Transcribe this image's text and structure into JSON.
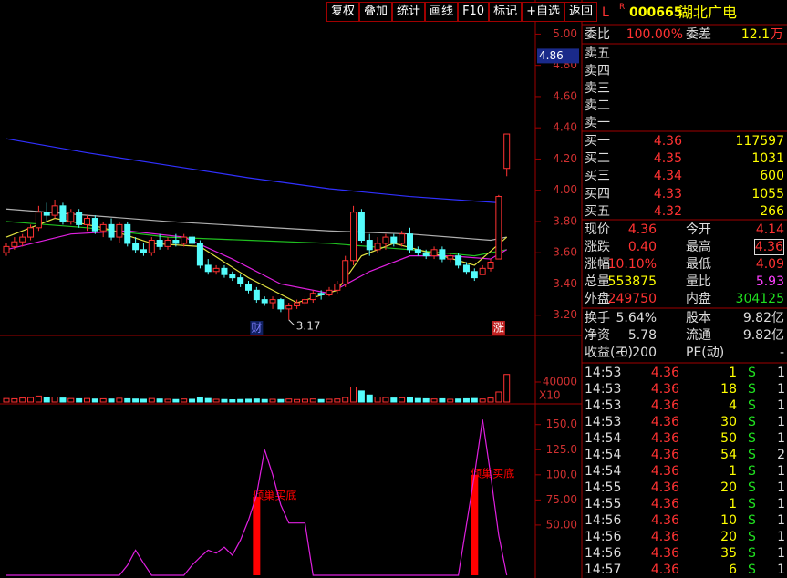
{
  "toolbar": [
    "复权",
    "叠加",
    "统计",
    "画线",
    "F10",
    "标记",
    "+自选",
    "返回"
  ],
  "quote": {
    "header": {
      "tag": "L",
      "flag": "R",
      "code": "000665",
      "name": "湖北广电"
    },
    "ratio": {
      "label": "委比",
      "value": "100.00%",
      "label2": "委差",
      "value2": "12.1",
      "unit": "万"
    },
    "asks": [
      "卖五",
      "卖四",
      "卖三",
      "卖二",
      "卖一"
    ],
    "bids": [
      {
        "label": "买一",
        "price": "4.36",
        "volume": "117597"
      },
      {
        "label": "买二",
        "price": "4.35",
        "volume": "1031"
      },
      {
        "label": "买三",
        "price": "4.34",
        "volume": "600"
      },
      {
        "label": "买四",
        "price": "4.33",
        "volume": "1055"
      },
      {
        "label": "买五",
        "price": "4.32",
        "volume": "266"
      }
    ],
    "stats": [
      [
        "现价",
        "4.36",
        "今开",
        "4.14"
      ],
      [
        "涨跌",
        "0.40",
        "最高",
        "4.36"
      ],
      [
        "涨幅",
        "10.10%",
        "最低",
        "4.09"
      ],
      [
        "总量",
        "553875",
        "量比",
        "5.93"
      ],
      [
        "外盘",
        "249750",
        "内盘",
        "304125"
      ],
      [
        "换手",
        "5.64%",
        "股本",
        "9.82亿"
      ],
      [
        "净资",
        "5.78",
        "流通",
        "9.82亿"
      ],
      [
        "收益(三)",
        "-0.200",
        "PE(动)",
        "-"
      ]
    ],
    "trades": [
      [
        "14:53",
        "4.36",
        "1",
        "S",
        "1"
      ],
      [
        "14:53",
        "4.36",
        "18",
        "S",
        "1"
      ],
      [
        "14:53",
        "4.36",
        "4",
        "S",
        "1"
      ],
      [
        "14:53",
        "4.36",
        "30",
        "S",
        "1"
      ],
      [
        "14:54",
        "4.36",
        "50",
        "S",
        "1"
      ],
      [
        "14:54",
        "4.36",
        "54",
        "S",
        "2"
      ],
      [
        "14:54",
        "4.36",
        "1",
        "S",
        "1"
      ],
      [
        "14:55",
        "4.36",
        "20",
        "S",
        "1"
      ],
      [
        "14:55",
        "4.36",
        "1",
        "S",
        "1"
      ],
      [
        "14:56",
        "4.36",
        "10",
        "S",
        "1"
      ],
      [
        "14:56",
        "4.36",
        "20",
        "S",
        "1"
      ],
      [
        "14:56",
        "4.36",
        "35",
        "S",
        "1"
      ],
      [
        "14:57",
        "4.36",
        "6",
        "S",
        "1"
      ]
    ]
  },
  "chart_data": [
    {
      "type": "candlestick",
      "up_color": "#ff3232",
      "down_color": "#54fcfc",
      "ohlc": [
        [
          3.6,
          3.66,
          3.58,
          3.64
        ],
        [
          3.64,
          3.7,
          3.62,
          3.67
        ],
        [
          3.67,
          3.72,
          3.64,
          3.7
        ],
        [
          3.7,
          3.78,
          3.68,
          3.76
        ],
        [
          3.76,
          3.9,
          3.74,
          3.86
        ],
        [
          3.86,
          3.92,
          3.8,
          3.84
        ],
        [
          3.84,
          3.94,
          3.82,
          3.9
        ],
        [
          3.9,
          3.92,
          3.78,
          3.8
        ],
        [
          3.8,
          3.88,
          3.78,
          3.86
        ],
        [
          3.86,
          3.88,
          3.76,
          3.78
        ],
        [
          3.78,
          3.84,
          3.74,
          3.82
        ],
        [
          3.82,
          3.84,
          3.72,
          3.74
        ],
        [
          3.74,
          3.8,
          3.7,
          3.78
        ],
        [
          3.78,
          3.82,
          3.68,
          3.7
        ],
        [
          3.7,
          3.8,
          3.66,
          3.78
        ],
        [
          3.78,
          3.8,
          3.64,
          3.66
        ],
        [
          3.66,
          3.7,
          3.6,
          3.62
        ],
        [
          3.62,
          3.66,
          3.58,
          3.6
        ],
        [
          3.6,
          3.7,
          3.58,
          3.68
        ],
        [
          3.68,
          3.72,
          3.62,
          3.64
        ],
        [
          3.64,
          3.7,
          3.62,
          3.68
        ],
        [
          3.68,
          3.72,
          3.64,
          3.66
        ],
        [
          3.66,
          3.72,
          3.64,
          3.7
        ],
        [
          3.7,
          3.72,
          3.64,
          3.66
        ],
        [
          3.66,
          3.68,
          3.5,
          3.52
        ],
        [
          3.52,
          3.56,
          3.46,
          3.48
        ],
        [
          3.48,
          3.52,
          3.46,
          3.5
        ],
        [
          3.5,
          3.52,
          3.44,
          3.46
        ],
        [
          3.46,
          3.48,
          3.42,
          3.44
        ],
        [
          3.44,
          3.46,
          3.38,
          3.4
        ],
        [
          3.4,
          3.42,
          3.34,
          3.36
        ],
        [
          3.36,
          3.38,
          3.28,
          3.3
        ],
        [
          3.3,
          3.32,
          3.26,
          3.28
        ],
        [
          3.28,
          3.32,
          3.24,
          3.3
        ],
        [
          3.3,
          3.31,
          3.22,
          3.24
        ],
        [
          3.24,
          3.28,
          3.17,
          3.26
        ],
        [
          3.26,
          3.3,
          3.24,
          3.28
        ],
        [
          3.28,
          3.32,
          3.26,
          3.3
        ],
        [
          3.3,
          3.36,
          3.28,
          3.34
        ],
        [
          3.34,
          3.36,
          3.3,
          3.33
        ],
        [
          3.33,
          3.38,
          3.32,
          3.36
        ],
        [
          3.36,
          3.42,
          3.34,
          3.4
        ],
        [
          3.4,
          3.58,
          3.38,
          3.55
        ],
        [
          3.55,
          3.9,
          3.52,
          3.86
        ],
        [
          3.86,
          3.88,
          3.66,
          3.68
        ],
        [
          3.68,
          3.72,
          3.58,
          3.62
        ],
        [
          3.62,
          3.7,
          3.6,
          3.66
        ],
        [
          3.66,
          3.72,
          3.62,
          3.7
        ],
        [
          3.7,
          3.72,
          3.64,
          3.66
        ],
        [
          3.66,
          3.74,
          3.64,
          3.72
        ],
        [
          3.72,
          3.76,
          3.6,
          3.62
        ],
        [
          3.62,
          3.64,
          3.58,
          3.6
        ],
        [
          3.6,
          3.62,
          3.56,
          3.58
        ],
        [
          3.58,
          3.64,
          3.56,
          3.62
        ],
        [
          3.62,
          3.64,
          3.54,
          3.56
        ],
        [
          3.56,
          3.6,
          3.54,
          3.58
        ],
        [
          3.58,
          3.6,
          3.5,
          3.52
        ],
        [
          3.52,
          3.54,
          3.46,
          3.48
        ],
        [
          3.48,
          3.5,
          3.42,
          3.44
        ],
        [
          3.46,
          3.52,
          3.46,
          3.5
        ],
        [
          3.5,
          3.56,
          3.48,
          3.54
        ],
        [
          3.56,
          3.97,
          3.56,
          3.96
        ],
        [
          4.14,
          4.36,
          4.09,
          4.36
        ]
      ],
      "series": [
        {
          "color": "#3030ff",
          "x": [
            0,
            10,
            20,
            30,
            40,
            50,
            61
          ],
          "values": [
            4.33,
            4.24,
            4.16,
            4.08,
            4.01,
            3.96,
            3.92
          ]
        },
        {
          "color": "#b0b0b0",
          "x": [
            0,
            10,
            20,
            30,
            40,
            50,
            60,
            62
          ],
          "values": [
            3.88,
            3.84,
            3.8,
            3.77,
            3.74,
            3.72,
            3.68,
            3.7
          ]
        },
        {
          "color": "#20c020",
          "x": [
            0,
            10,
            20,
            30,
            40,
            50,
            58,
            62
          ],
          "values": [
            3.8,
            3.76,
            3.7,
            3.68,
            3.66,
            3.62,
            3.58,
            3.62
          ]
        },
        {
          "color": "#e020e0",
          "x": [
            0,
            8,
            15,
            22,
            28,
            34,
            40,
            45,
            50,
            55,
            60,
            62
          ],
          "values": [
            3.62,
            3.72,
            3.74,
            3.7,
            3.56,
            3.4,
            3.34,
            3.48,
            3.58,
            3.58,
            3.56,
            3.62
          ]
        },
        {
          "color": "#e0e040",
          "x": [
            0,
            6,
            12,
            18,
            24,
            30,
            36,
            41,
            44,
            48,
            54,
            58,
            62
          ],
          "values": [
            3.7,
            3.82,
            3.76,
            3.66,
            3.64,
            3.44,
            3.28,
            3.36,
            3.58,
            3.66,
            3.58,
            3.52,
            3.7
          ]
        }
      ],
      "ylim": [
        3.07,
        5.09
      ],
      "yticks": [
        {
          "value": 5,
          "label": "5.00"
        },
        {
          "value": 4.8,
          "label": "4.80"
        },
        {
          "value": 4.6,
          "label": "4.60"
        },
        {
          "value": 4.4,
          "label": "4.40"
        },
        {
          "value": 4.2,
          "label": "4.20"
        },
        {
          "value": 4,
          "label": "4.00"
        },
        {
          "value": 3.8,
          "label": "3.80"
        },
        {
          "value": 3.6,
          "label": "3.60"
        },
        {
          "value": 3.4,
          "label": "3.40"
        },
        {
          "value": 3.2,
          "label": "3.20"
        }
      ],
      "crosshair": {
        "value": 4.86,
        "label": "4.86"
      },
      "low": {
        "x": 35,
        "value": 3.17
      },
      "annotations": [
        {
          "x": 31,
          "text": "财"
        },
        {
          "x": 61,
          "text": "涨"
        }
      ]
    },
    {
      "type": "bar",
      "unit_label": "X10",
      "values": [
        7000,
        6500,
        8000,
        9000,
        12000,
        9000,
        10000,
        8000,
        7000,
        6500,
        7000,
        6000,
        6500,
        6000,
        7500,
        6500,
        6000,
        5500,
        7000,
        6000,
        5500,
        5000,
        6000,
        5500,
        9000,
        7000,
        5500,
        5000,
        4500,
        5000,
        5500,
        6000,
        5000,
        5500,
        5000,
        6000,
        5000,
        5500,
        6000,
        5000,
        5500,
        6000,
        9000,
        30000,
        22000,
        14000,
        10000,
        9000,
        8000,
        8500,
        9000,
        7000,
        6500,
        6000,
        6500,
        5500,
        6000,
        6500,
        7000,
        6000,
        8000,
        20000,
        55000
      ],
      "ylim": [
        0,
        129000
      ],
      "yticks": [
        40000
      ]
    },
    {
      "type": "line",
      "color": "#e020e0",
      "signal_color": "#ff0000",
      "values": [
        0,
        0,
        0,
        0,
        0,
        0,
        0,
        0,
        0,
        0,
        0,
        0,
        0,
        0,
        0,
        10,
        25,
        12,
        0,
        0,
        0,
        0,
        0,
        10,
        18,
        25,
        22,
        28,
        20,
        35,
        55,
        80,
        125,
        100,
        70,
        52,
        52,
        52,
        0,
        0,
        0,
        0,
        0,
        0,
        0,
        0,
        0,
        0,
        0,
        0,
        0,
        0,
        0,
        0,
        0,
        0,
        0,
        50,
        100,
        155,
        100,
        40,
        0
      ],
      "signals": [
        {
          "x": 31,
          "value": 78,
          "label": "倾巢买底"
        },
        {
          "x": 58,
          "value": 100,
          "label": "倾巢买底"
        }
      ],
      "ylim": [
        0,
        167
      ],
      "yticks": [
        {
          "value": 150,
          "label": "150.0"
        },
        {
          "value": 125,
          "label": "125.0"
        },
        {
          "value": 100,
          "label": "100.0"
        },
        {
          "value": 75,
          "label": "75.00"
        },
        {
          "value": 50,
          "label": "50.00"
        }
      ]
    }
  ]
}
